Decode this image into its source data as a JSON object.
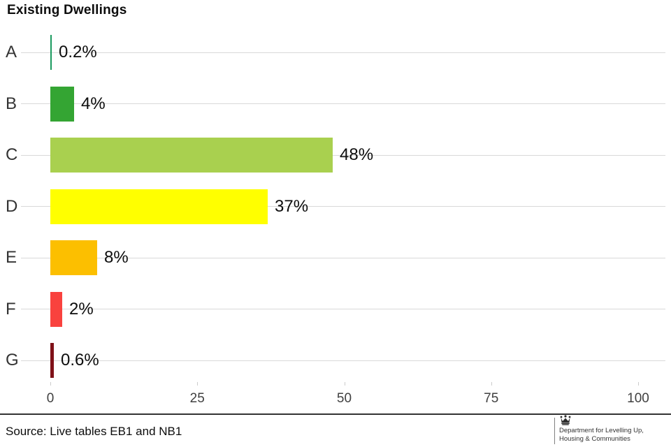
{
  "title": "Existing Dwellings",
  "chart_data": {
    "type": "bar",
    "orientation": "horizontal",
    "title": "Existing Dwellings",
    "categories": [
      "A",
      "B",
      "C",
      "D",
      "E",
      "F",
      "G"
    ],
    "values": [
      0.2,
      4,
      48,
      37,
      8,
      2,
      0.6
    ],
    "value_labels": [
      "0.2%",
      "4%",
      "48%",
      "37%",
      "8%",
      "2%",
      "0.6%"
    ],
    "bar_colors": [
      "#1a9a5f",
      "#34a533",
      "#a9d04f",
      "#ffff00",
      "#fcbf00",
      "#f9423e",
      "#7f1118"
    ],
    "xlabel": "",
    "ylabel": "",
    "xlim": [
      0,
      100
    ],
    "x_ticks": [
      0,
      25,
      50,
      75,
      100
    ],
    "x_tick_labels": [
      "0",
      "25",
      "50",
      "75",
      "100"
    ],
    "grid": "row lines on",
    "legend": "none",
    "gridline_color": "#d9d9d9",
    "axis_text_color": "#404040"
  },
  "footer": {
    "source": "Source: Live tables EB1 and NB1",
    "logo": {
      "icon": "royal-crest-icon",
      "line1": "Department for Levelling Up,",
      "line2": "Housing & Communities"
    }
  }
}
